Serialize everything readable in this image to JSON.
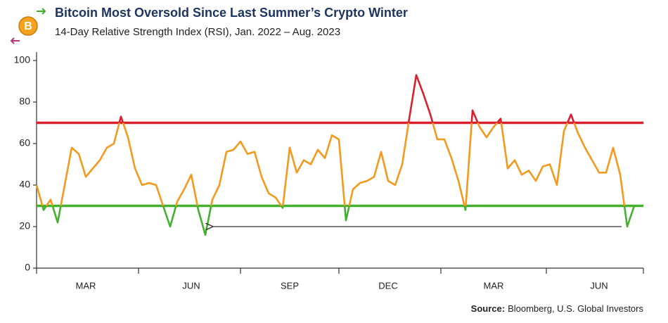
{
  "chart_data": {
    "type": "line",
    "title": "Bitcoin Most Oversold Since Last Summer’s Crypto Winter",
    "subtitle": "14-Day Relative Strength Index (RSI), Jan. 2022 – Aug. 2023",
    "source_label": "Source:",
    "source": "Bloomberg, U.S. Global Investors",
    "categories": [
      null,
      null,
      null,
      null,
      null,
      null,
      null,
      "MAR",
      null,
      null,
      null,
      null,
      null,
      null,
      null,
      null,
      null,
      null,
      null,
      null,
      null,
      null,
      "JUN",
      null,
      null,
      null,
      null,
      null,
      null,
      null,
      null,
      null,
      null,
      null,
      null,
      null,
      "SEP",
      null,
      null,
      null,
      null,
      null,
      null,
      null,
      null,
      null,
      null,
      null,
      null,
      null,
      "DEC",
      null,
      null,
      null,
      null,
      null,
      null,
      null,
      null,
      null,
      null,
      null,
      null,
      null,
      null,
      "MAR",
      null,
      null,
      null,
      null,
      null,
      null,
      null,
      null,
      null,
      null,
      null,
      null,
      null,
      null,
      "JUN",
      null,
      null,
      null,
      null,
      null
    ],
    "values": [
      40,
      28,
      33,
      22,
      40,
      58,
      55,
      44,
      48,
      52,
      58,
      60,
      73,
      63,
      48,
      40,
      41,
      40,
      30,
      20,
      32,
      38,
      45,
      28,
      16,
      33,
      40,
      56,
      57,
      61,
      55,
      56,
      44,
      36,
      34,
      29,
      58,
      46,
      52,
      50,
      57,
      53,
      64,
      62,
      23,
      38,
      41,
      42,
      44,
      56,
      42,
      40,
      50,
      72,
      93,
      84,
      74,
      62,
      62,
      53,
      42,
      28,
      76,
      68,
      63,
      68,
      72,
      48,
      52,
      45,
      47,
      42,
      49,
      50,
      40,
      66,
      74,
      65,
      58,
      52,
      46,
      46,
      58,
      45,
      20,
      30
    ],
    "color": "#f39a1e",
    "reference_lines": [
      {
        "value": 70,
        "color": "#d9202e"
      },
      {
        "value": 30,
        "color": "#45b02f"
      }
    ],
    "ylim": [
      0,
      100
    ],
    "yticks": [
      0,
      20,
      40,
      60,
      80,
      100
    ]
  }
}
